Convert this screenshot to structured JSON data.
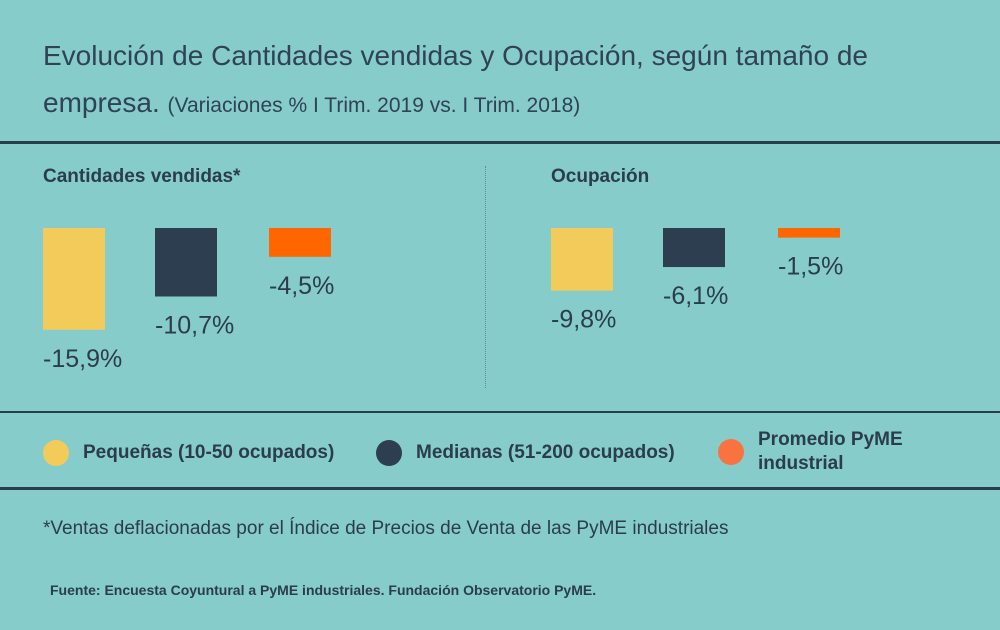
{
  "title": {
    "main": "Evolución de Cantidades vendidas y Ocupación, según tamaño de empresa.",
    "sub": "(Variaciones % I Trim. 2019 vs. I Trim. 2018)"
  },
  "colors": {
    "background": "#86cccb",
    "dark": "#2b3c4f",
    "pequenas": "#f2cb5a",
    "medianas": "#2c3e50",
    "promedio": "#ff6600",
    "promedio_legend": "#f97341"
  },
  "legend": [
    {
      "label": "Pequeñas (10-50 ocupados)",
      "color": "#f2cb5a"
    },
    {
      "label": "Medianas (51-200 ocupados)",
      "color": "#2c3e50"
    },
    {
      "label": "Promedio PyME industrial",
      "color": "#f97341"
    }
  ],
  "chart_data": [
    {
      "type": "bar",
      "title": "Cantidades vendidas*",
      "categories": [
        "Pequeñas (10-50 ocupados)",
        "Medianas (51-200 ocupados)",
        "Promedio PyME industrial"
      ],
      "values": [
        -15.9,
        -10.7,
        -4.5
      ],
      "value_labels": [
        "-15,9%",
        "-10,7%",
        "-4,5%"
      ],
      "unit": "%",
      "colors": [
        "#f2cb5a",
        "#2c3e50",
        "#ff6600"
      ]
    },
    {
      "type": "bar",
      "title": "Ocupación",
      "categories": [
        "Pequeñas (10-50 ocupados)",
        "Medianas (51-200 ocupados)",
        "Promedio PyME industrial"
      ],
      "values": [
        -9.8,
        -6.1,
        -1.5
      ],
      "value_labels": [
        "-9,8%",
        "-6,1%",
        "-1,5%"
      ],
      "unit": "%",
      "colors": [
        "#f2cb5a",
        "#2c3e50",
        "#ff6600"
      ]
    }
  ],
  "footnote": "*Ventas deflacionadas por el Índice de Precios de Venta de las PyME industriales",
  "source": "Fuente: Encuesta Coyuntural a PyME industriales. Fundación Observatorio PyME."
}
